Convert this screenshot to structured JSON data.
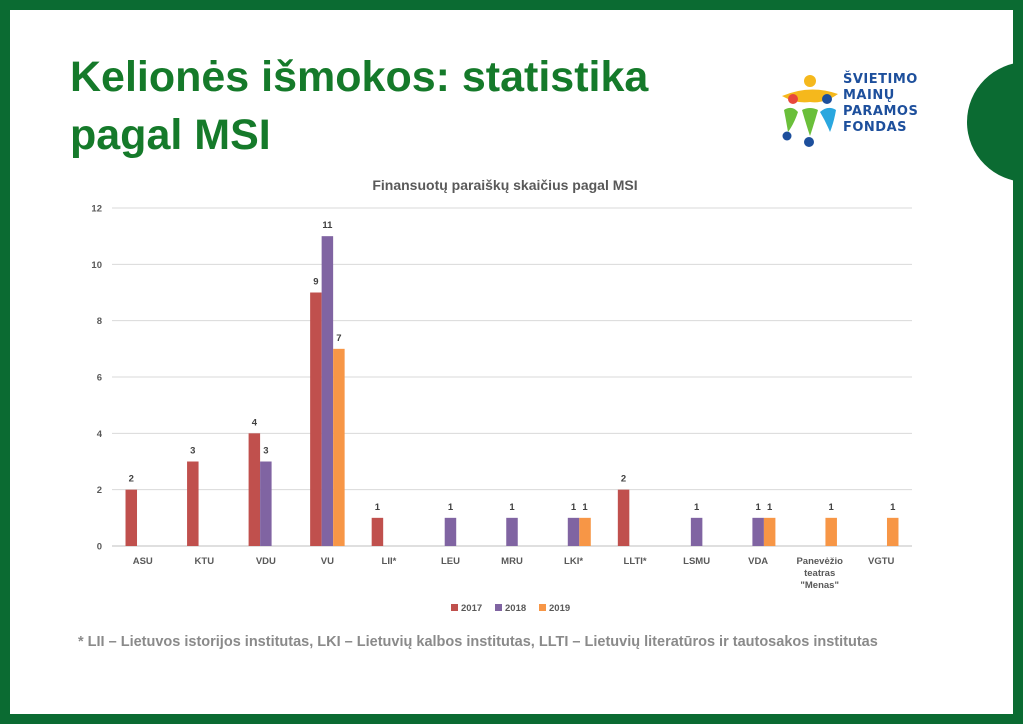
{
  "slide": {
    "title_line1": "Kelionės išmokos: statistika",
    "title_line2": "pagal MSI",
    "logo": {
      "lines": [
        "ŠVIETIMO",
        "MAINŲ",
        "PARAMOS",
        "FONDAS"
      ],
      "icon": "people-figures-logo-icon"
    },
    "footnote": "* LII – Lietuvos istorijos institutas, LKI – Lietuvių kalbos institutas, LLTI – Lietuvių literatūros ir tautosakos institutas",
    "colors": {
      "frame": "#0b6b32",
      "title": "#157a2a",
      "logo_text": "#1d4f9c"
    }
  },
  "chart_data": {
    "type": "bar",
    "title": "Finansuotų paraiškų skaičius pagal MSI",
    "xlabel": "",
    "ylabel": "",
    "ylim": [
      0,
      12
    ],
    "yticks": [
      0,
      2,
      4,
      6,
      8,
      10,
      12
    ],
    "grid": true,
    "legend_position": "bottom",
    "categories": [
      [
        "ASU"
      ],
      [
        "KTU"
      ],
      [
        "VDU"
      ],
      [
        "VU"
      ],
      [
        "LII*"
      ],
      [
        "LEU"
      ],
      [
        "MRU"
      ],
      [
        "LKI*"
      ],
      [
        "LLTI*"
      ],
      [
        "LSMU"
      ],
      [
        "VDA"
      ],
      [
        "Panevėžio",
        "teatras",
        "\"Menas\""
      ],
      [
        "VGTU"
      ]
    ],
    "series": [
      {
        "name": "2017",
        "color": "#c0504d",
        "values": [
          2,
          3,
          4,
          9,
          1,
          null,
          null,
          null,
          2,
          null,
          null,
          null,
          null
        ]
      },
      {
        "name": "2018",
        "color": "#8064a2",
        "values": [
          null,
          null,
          3,
          11,
          null,
          1,
          1,
          1,
          null,
          1,
          1,
          null,
          null
        ]
      },
      {
        "name": "2019",
        "color": "#f79646",
        "values": [
          null,
          null,
          null,
          7,
          null,
          null,
          null,
          1,
          null,
          null,
          1,
          1,
          1
        ]
      }
    ]
  }
}
